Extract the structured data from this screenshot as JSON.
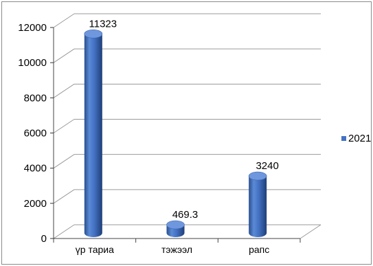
{
  "chart_data": {
    "type": "bar",
    "style": "3d-cylinder",
    "title": "",
    "xlabel": "",
    "ylabel": "",
    "categories": [
      "үр тариа",
      "тэжээл",
      "рапс"
    ],
    "series": [
      {
        "name": "2021",
        "values": [
          11323,
          469.3,
          3240
        ],
        "labels": [
          "11323",
          "469.3",
          "3240"
        ],
        "color": "#4472C4"
      }
    ],
    "ylim": [
      0,
      12000
    ],
    "yticks": [
      0,
      2000,
      4000,
      6000,
      8000,
      10000,
      12000
    ],
    "grid": true,
    "legend": "right"
  }
}
